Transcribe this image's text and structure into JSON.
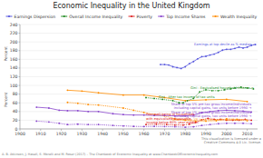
{
  "chart_data": {
    "type": "line",
    "title": "Economic Inequality in the United Kingdom",
    "xlim": [
      1900,
      2015
    ],
    "ylim": [
      0,
      240
    ],
    "xticks": [
      1900,
      1910,
      1920,
      1930,
      1940,
      1950,
      1960,
      1970,
      1980,
      1990,
      2000,
      2010
    ],
    "yticks": [
      0,
      20,
      40,
      60,
      80,
      100,
      120,
      140,
      160,
      180,
      200,
      220,
      240
    ],
    "grid": true,
    "legend": "top",
    "legend_entries": [
      {
        "name": "Earnings Dispersion",
        "color": "#5555dd"
      },
      {
        "name": "Overall Income Inequality",
        "color": "#228B22"
      },
      {
        "name": "Poverty",
        "color": "#dd2222"
      },
      {
        "name": "Top Income Shares",
        "color": "#8844cc"
      },
      {
        "name": "Wealth Inequality",
        "color": "#ff8c00"
      }
    ],
    "ylabels": [
      "Percent",
      "Percent"
    ],
    "series": [
      {
        "color": "#ff8c00",
        "line_style": "solid",
        "marker": "point",
        "x": [
          1923,
          1930,
          1938,
          1950,
          1960,
          1970,
          1980,
          1990,
          2000,
          2010
        ],
        "values": [
          89,
          87,
          83,
          78,
          78,
          72,
          65,
          67,
          68,
          63
        ]
      },
      {
        "color": "#ff8c00",
        "line_style": "dotted",
        "marker": "point",
        "x": [
          1923,
          1928,
          1933,
          1938,
          1950,
          1955,
          1960,
          1965,
          1970,
          1975,
          1980,
          1985,
          1990,
          1995,
          2000,
          2005,
          2010
        ],
        "values": [
          61,
          59,
          56,
          55,
          48,
          43,
          38,
          33,
          30,
          23,
          20,
          18,
          18,
          19,
          23,
          22,
          19
        ]
      },
      {
        "color": "#5555dd",
        "line_style": "solid",
        "marker": "point",
        "x": [
          1968,
          1970,
          1972,
          1974,
          1976,
          1978,
          1980,
          1982,
          1984,
          1986,
          1988,
          1990,
          1992,
          1994,
          1996,
          1998,
          2000,
          2002,
          2004,
          2006,
          2008,
          2010,
          2012,
          2014
        ],
        "values": [
          148,
          148,
          147,
          143,
          141,
          139,
          143,
          150,
          155,
          161,
          166,
          167,
          170,
          172,
          176,
          181,
          183,
          183,
          185,
          188,
          186,
          188,
          192,
          194
        ]
      },
      {
        "color": "#228B22",
        "line_style": "dotted",
        "marker": "point",
        "x": [
          1961,
          1965,
          1969,
          1974,
          1977,
          1979,
          1981,
          1984,
          1987,
          1990,
          1993,
          1996,
          1999,
          2002,
          2004,
          2007,
          2010,
          2013
        ],
        "values": [
          72,
          70,
          68,
          65,
          60,
          60,
          65,
          70,
          85,
          90,
          88,
          88,
          90,
          92,
          94,
          96,
          94,
          92
        ]
      },
      {
        "color": "#dd2222",
        "line_style": "dotted",
        "marker": "point",
        "x": [
          1961,
          1966,
          1971,
          1975,
          1979,
          1982,
          1985,
          1988,
          1991,
          1994,
          1997,
          2000,
          2003,
          2006,
          2009,
          2012
        ],
        "values": [
          10,
          11,
          10,
          9,
          9,
          11,
          15,
          21,
          24,
          22,
          22,
          20,
          20,
          20,
          22,
          20
        ]
      },
      {
        "color": "#8844cc",
        "line_style": "dotted",
        "marker": "point",
        "x": [
          1908,
          1914,
          1919,
          1923,
          1928,
          1933,
          1938,
          1945,
          1950,
          1955,
          1960,
          1965,
          1970,
          1975,
          1980,
          1984,
          1988,
          1992,
          1996,
          2000,
          2004,
          2008,
          2012
        ],
        "values": [
          18,
          16,
          13,
          10,
          11,
          10,
          10,
          8,
          7,
          6,
          5.5,
          6,
          5.5,
          5,
          4,
          5,
          8,
          10,
          12,
          13,
          13,
          13,
          12
        ]
      },
      {
        "color": "#8844cc",
        "line_style": "solid",
        "marker": "point",
        "x": [
          1908,
          1914,
          1919,
          1923,
          1928,
          1933,
          1938,
          1945,
          1950,
          1955,
          1960,
          1965,
          1970,
          1975,
          1980,
          1984,
          1988,
          1992,
          1996,
          2000,
          2004,
          2008,
          2012
        ],
        "values": [
          50,
          48,
          43,
          42,
          42,
          40,
          40,
          35,
          33,
          32,
          32,
          31,
          31,
          30,
          30,
          32,
          37,
          40,
          42,
          43,
          42,
          41,
          39
        ]
      }
    ],
    "annotations": [
      {
        "text": "Earnings at top decile as % median →",
        "x": 2014,
        "y": 194,
        "color": "#5555dd"
      },
      {
        "text": "Gini - Equivalised household income →",
        "x": 2013,
        "y": 93,
        "color": "#228B22"
      },
      {
        "text": "Share of top 1% total net worth distribution →",
        "x": 2010,
        "y": 20,
        "color": "#ff8c00"
      },
      {
        "text": "Share of top 1% pre-tax gross income/individuals\nincluding capital gains, tax units before 1990 →",
        "x": 2012,
        "y": 13,
        "color": "#8844cc"
      },
      {
        "text": "Share of top 5% pre-tax gross income/individuals\nincluding capital gains, tax units before 1990 →",
        "x": 2012,
        "y": 39,
        "color": "#8844cc"
      },
      {
        "text": "Gini - After tax income of tax units",
        "x": 1967,
        "y": 73,
        "color": "#228B22"
      },
      {
        "text": "Poor well-being of households\nwith equivalised disposable\nincome below 60% year median",
        "x": 1961,
        "y": 24,
        "color": "#dd2222"
      }
    ],
    "citation": "A. B. Atkinson, J. Hasell, S. Morelli and M. Roser (2017) – The Chartbook of Economic Inequality at www.ChartbookOfEconomicInequality.com",
    "license": "This visualization is licensed under a\nCreative Commons 4.0 Lic. license."
  }
}
